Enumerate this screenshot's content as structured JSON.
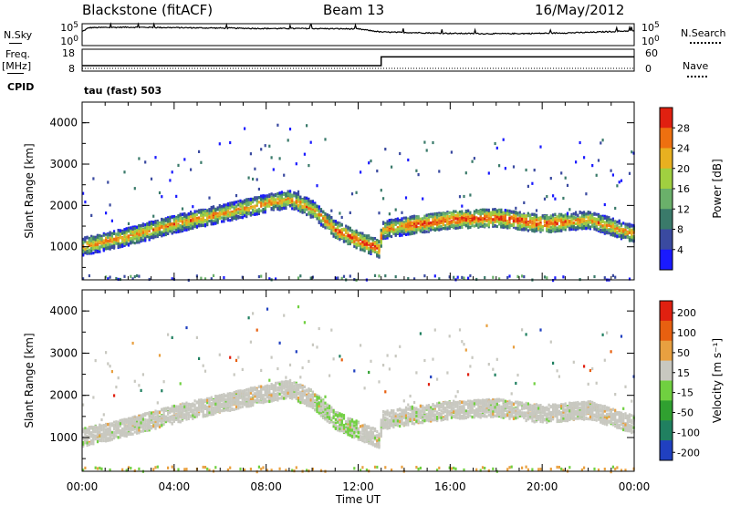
{
  "header": {
    "station": "Blackstone (fitACF)",
    "beam": "Beam 13",
    "date": "16/May/2012"
  },
  "labels": {
    "nsky": "N.Sky",
    "nsearch": "N.Search",
    "freq": "Freq.",
    "freq_unit": "[MHz]",
    "nave": "Nave",
    "cpid": "CPID",
    "cpid_value": "tau (fast) 503",
    "noise_ticks": [
      "10^5",
      "10^0"
    ],
    "freq_ticks": [
      "18",
      "8"
    ],
    "nave_ticks": [
      "60",
      "0"
    ]
  },
  "chart_data": [
    {
      "type": "line",
      "panel": "noise",
      "title": "",
      "series": [
        {
          "name": "N.Sky",
          "x": [
            0,
            0.3,
            2,
            4,
            6,
            8,
            10,
            12,
            13,
            14,
            16,
            18,
            20,
            22,
            24
          ],
          "values": [
            3.2,
            4.1,
            4.2,
            4.1,
            4.0,
            3.9,
            3.9,
            3.8,
            3.1,
            3.0,
            2.8,
            2.7,
            2.8,
            3.0,
            3.4
          ]
        }
      ],
      "ylabel_left": "N.Sky",
      "ylabel_right": "N.Search",
      "yticks": [
        "10^5",
        "10^0"
      ],
      "log_scale": true
    },
    {
      "type": "line",
      "panel": "frequency",
      "title": "",
      "series": [
        {
          "name": "Freq.",
          "x": [
            0,
            13,
            13,
            24
          ],
          "values": [
            10.5,
            10.5,
            14.5,
            14.5
          ]
        },
        {
          "name": "Nave",
          "x": [
            0,
            24
          ],
          "values": [
            2,
            2
          ]
        }
      ],
      "yticks_left": [
        "18",
        "8"
      ],
      "yticks_right": [
        "60",
        "0"
      ]
    },
    {
      "type": "heatmap",
      "panel": "power",
      "xlabel": "",
      "ylabel": "Slant Range [km]",
      "xlim": [
        0,
        24
      ],
      "ylim": [
        200,
        4500
      ],
      "yticks": [
        "1000",
        "2000",
        "3000",
        "4000"
      ],
      "colorbar_label": "Power [dB]",
      "colorbar_ticks": [
        "4",
        "8",
        "12",
        "16",
        "20",
        "24",
        "28"
      ],
      "colorbar_colors": [
        "#1a1aff",
        "#3a4aa0",
        "#3a7a6a",
        "#6ab06a",
        "#a0d040",
        "#e8b020",
        "#ee7010",
        "#e02010"
      ],
      "band_center": {
        "x": [
          0,
          2,
          4,
          6,
          8,
          9,
          10,
          11,
          12,
          12.9,
          13,
          14,
          16,
          18,
          20,
          22,
          24
        ],
        "values": [
          1000,
          1250,
          1550,
          1800,
          2050,
          2150,
          1900,
          1400,
          1150,
          950,
          1400,
          1500,
          1650,
          1700,
          1550,
          1650,
          1300
        ]
      }
    },
    {
      "type": "heatmap",
      "panel": "velocity",
      "xlabel": "Time UT",
      "ylabel": "Slant Range [km]",
      "xlim": [
        0,
        24
      ],
      "ylim": [
        200,
        4500
      ],
      "xticks": [
        "00:00",
        "04:00",
        "08:00",
        "12:00",
        "16:00",
        "20:00",
        "00:00"
      ],
      "yticks": [
        "1000",
        "2000",
        "3000",
        "4000"
      ],
      "colorbar_label": "Velocity [m s⁻¹]",
      "colorbar_ticks": [
        "200",
        "100",
        "50",
        "15",
        "-15",
        "-50",
        "-100",
        "-200"
      ],
      "colorbar_colors": [
        "#2040c0",
        "#208060",
        "#30a030",
        "#70d040",
        "#c8c8c0",
        "#e8a040",
        "#e86010",
        "#e02010"
      ]
    }
  ]
}
